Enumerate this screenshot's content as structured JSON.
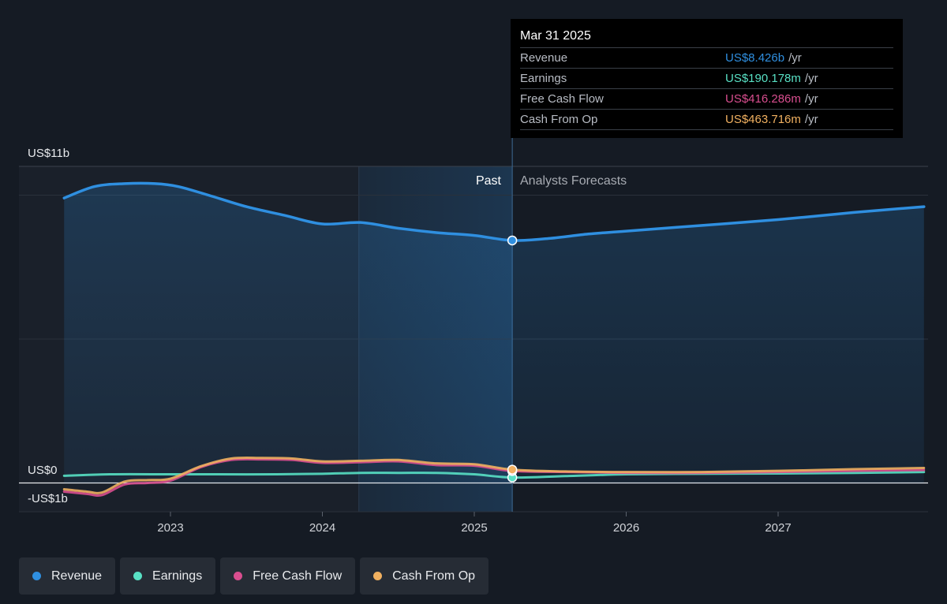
{
  "chart_data": {
    "type": "line",
    "y_axis": {
      "ticks": [
        "US$11b",
        "US$0",
        "-US$1b"
      ],
      "ylim": [
        -1,
        11
      ],
      "unit": "US$b"
    },
    "x_axis": {
      "ticks": [
        "2023",
        "2024",
        "2025",
        "2026",
        "2027"
      ],
      "xlim": [
        "2022-04",
        "2027-12"
      ]
    },
    "regions": {
      "past_label": "Past",
      "forecast_label": "Analysts Forecasts",
      "past_start": 2024.24,
      "divider": 2025.25
    },
    "series": [
      {
        "name": "Revenue",
        "color": "#2f8fe0",
        "points": [
          [
            2022.3,
            9.9
          ],
          [
            2022.5,
            10.3
          ],
          [
            2022.7,
            10.4
          ],
          [
            2022.9,
            10.4
          ],
          [
            2023.05,
            10.3
          ],
          [
            2023.25,
            10.0
          ],
          [
            2023.5,
            9.6
          ],
          [
            2023.75,
            9.3
          ],
          [
            2024.0,
            9.0
          ],
          [
            2024.25,
            9.05
          ],
          [
            2024.5,
            8.85
          ],
          [
            2024.75,
            8.7
          ],
          [
            2025.0,
            8.6
          ],
          [
            2025.25,
            8.426
          ],
          [
            2025.5,
            8.5
          ],
          [
            2025.75,
            8.65
          ],
          [
            2026.0,
            8.75
          ],
          [
            2026.5,
            8.95
          ],
          [
            2027.0,
            9.15
          ],
          [
            2027.5,
            9.4
          ],
          [
            2027.96,
            9.6
          ]
        ]
      },
      {
        "name": "Earnings",
        "color": "#58e0c4",
        "points": [
          [
            2022.3,
            0.25
          ],
          [
            2022.6,
            0.3
          ],
          [
            2023.0,
            0.3
          ],
          [
            2023.3,
            0.3
          ],
          [
            2023.7,
            0.3
          ],
          [
            2024.0,
            0.32
          ],
          [
            2024.25,
            0.35
          ],
          [
            2024.5,
            0.35
          ],
          [
            2024.75,
            0.35
          ],
          [
            2025.0,
            0.3
          ],
          [
            2025.25,
            0.19
          ],
          [
            2025.6,
            0.24
          ],
          [
            2026.0,
            0.3
          ],
          [
            2026.5,
            0.32
          ],
          [
            2027.0,
            0.33
          ],
          [
            2027.5,
            0.35
          ],
          [
            2027.96,
            0.38
          ]
        ]
      },
      {
        "name": "Free Cash Flow",
        "color": "#d94e8f",
        "points": [
          [
            2022.3,
            -0.3
          ],
          [
            2022.45,
            -0.38
          ],
          [
            2022.55,
            -0.42
          ],
          [
            2022.7,
            -0.05
          ],
          [
            2022.85,
            0.0
          ],
          [
            2023.0,
            0.08
          ],
          [
            2023.2,
            0.55
          ],
          [
            2023.4,
            0.8
          ],
          [
            2023.6,
            0.82
          ],
          [
            2023.8,
            0.8
          ],
          [
            2024.0,
            0.7
          ],
          [
            2024.25,
            0.72
          ],
          [
            2024.5,
            0.75
          ],
          [
            2024.75,
            0.62
          ],
          [
            2025.0,
            0.6
          ],
          [
            2025.25,
            0.416
          ],
          [
            2025.6,
            0.38
          ],
          [
            2026.0,
            0.35
          ],
          [
            2026.5,
            0.35
          ],
          [
            2027.0,
            0.38
          ],
          [
            2027.5,
            0.42
          ],
          [
            2027.96,
            0.45
          ]
        ]
      },
      {
        "name": "Cash From Op",
        "color": "#f0b060",
        "points": [
          [
            2022.3,
            -0.22
          ],
          [
            2022.45,
            -0.3
          ],
          [
            2022.55,
            -0.33
          ],
          [
            2022.7,
            0.05
          ],
          [
            2022.85,
            0.1
          ],
          [
            2023.0,
            0.15
          ],
          [
            2023.2,
            0.58
          ],
          [
            2023.4,
            0.85
          ],
          [
            2023.6,
            0.87
          ],
          [
            2023.8,
            0.85
          ],
          [
            2024.0,
            0.75
          ],
          [
            2024.25,
            0.77
          ],
          [
            2024.5,
            0.8
          ],
          [
            2024.75,
            0.68
          ],
          [
            2025.0,
            0.65
          ],
          [
            2025.25,
            0.463716
          ],
          [
            2025.6,
            0.4
          ],
          [
            2026.0,
            0.38
          ],
          [
            2026.5,
            0.38
          ],
          [
            2027.0,
            0.42
          ],
          [
            2027.5,
            0.48
          ],
          [
            2027.96,
            0.52
          ]
        ]
      }
    ]
  },
  "tooltip": {
    "date": "Mar 31 2025",
    "rows": [
      {
        "label": "Revenue",
        "value": "US$8.426b",
        "unit": "/yr",
        "color": "#2f8fe0"
      },
      {
        "label": "Earnings",
        "value": "US$190.178m",
        "unit": "/yr",
        "color": "#58e0c4"
      },
      {
        "label": "Free Cash Flow",
        "value": "US$416.286m",
        "unit": "/yr",
        "color": "#d94e8f"
      },
      {
        "label": "Cash From Op",
        "value": "US$463.716m",
        "unit": "/yr",
        "color": "#f0b060"
      }
    ]
  },
  "legend": [
    {
      "label": "Revenue",
      "color": "#2f8fe0"
    },
    {
      "label": "Earnings",
      "color": "#58e0c4"
    },
    {
      "label": "Free Cash Flow",
      "color": "#d94e8f"
    },
    {
      "label": "Cash From Op",
      "color": "#f0b060"
    }
  ]
}
